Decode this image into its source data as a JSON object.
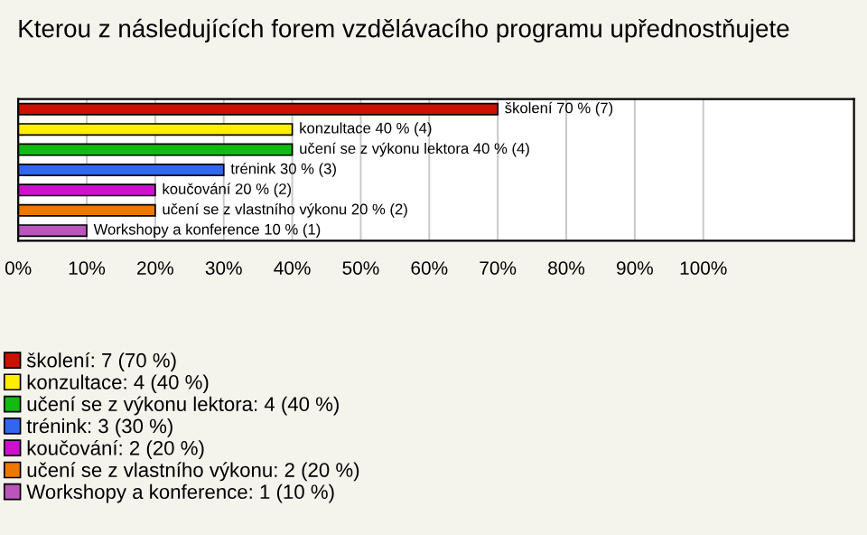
{
  "chart_data": {
    "type": "bar",
    "orientation": "horizontal",
    "title": "Kterou z následujících forem vzdělávacího programu upřednostňujete",
    "categories": [
      null,
      null,
      null,
      null,
      null,
      null,
      null
    ],
    "series": [
      {
        "name": "školení: 7 (70 %)",
        "color": "#cc1100",
        "values": [
          70,
          null,
          null,
          null,
          null,
          null,
          null
        ],
        "value_labels": [
          "školení 70 % (7)",
          null,
          null,
          null,
          null,
          null,
          null
        ]
      },
      {
        "name": "konzultace: 4 (40 %)",
        "color": "#ffee00",
        "values": [
          null,
          40,
          null,
          null,
          null,
          null,
          null
        ],
        "value_labels": [
          null,
          "konzultace 40 % (4)",
          null,
          null,
          null,
          null,
          null
        ]
      },
      {
        "name": "učení se z výkonu lektora: 4 (40 %)",
        "color": "#11bb11",
        "values": [
          null,
          null,
          40,
          null,
          null,
          null,
          null
        ],
        "value_labels": [
          null,
          null,
          "učení se z výkonu lektora 40 % (4)",
          null,
          null,
          null,
          null
        ]
      },
      {
        "name": "trénink: 3 (30 %)",
        "color": "#3366ee",
        "values": [
          null,
          null,
          null,
          30,
          null,
          null,
          null
        ],
        "value_labels": [
          null,
          null,
          null,
          "trénink 30 % (3)",
          null,
          null,
          null
        ]
      },
      {
        "name": "koučování: 2 (20 %)",
        "color": "#cc11cc",
        "values": [
          null,
          null,
          null,
          null,
          20,
          null,
          null
        ],
        "value_labels": [
          null,
          null,
          null,
          null,
          "koučování 20 % (2)",
          null,
          null
        ]
      },
      {
        "name": "učení se z vlastního výkonu: 2 (20 %)",
        "color": "#ee7700",
        "values": [
          null,
          null,
          null,
          null,
          null,
          20,
          null
        ],
        "value_labels": [
          null,
          null,
          null,
          null,
          null,
          "učení se z vlastního výkonu 20 % (2)",
          null
        ]
      },
      {
        "name": "Workshopy a konference: 1 (10 %)",
        "color": "#bb55bb",
        "values": [
          null,
          null,
          null,
          null,
          null,
          null,
          10
        ],
        "value_labels": [
          null,
          null,
          null,
          null,
          null,
          null,
          "Workshopy a konference 10 % (1)"
        ]
      }
    ],
    "xlim": [
      0,
      122
    ],
    "xticks": [
      {
        "value": 0,
        "label": "0%"
      },
      {
        "value": 10,
        "label": "10%"
      },
      {
        "value": 20,
        "label": "20%"
      },
      {
        "value": 30,
        "label": "30%"
      },
      {
        "value": 40,
        "label": "40%"
      },
      {
        "value": 50,
        "label": "50%"
      },
      {
        "value": 60,
        "label": "60%"
      },
      {
        "value": 70,
        "label": "70%"
      },
      {
        "value": 80,
        "label": "80%"
      },
      {
        "value": 90,
        "label": "90%"
      },
      {
        "value": 100,
        "label": "100%"
      }
    ],
    "grid": "x",
    "legend": "bottom"
  }
}
